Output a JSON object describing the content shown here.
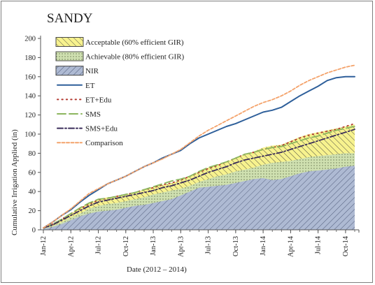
{
  "chart_data": {
    "type": "area",
    "title": "SANDY",
    "xlabel": "Date (2012 – 2014)",
    "ylabel": "Cumulative Irrigation Applied (in)",
    "ylim": [
      0,
      200
    ],
    "yticks": [
      0,
      20,
      40,
      60,
      80,
      100,
      120,
      140,
      160,
      180,
      200
    ],
    "x": [
      "2012-01",
      "2012-02",
      "2012-03",
      "2012-04",
      "2012-05",
      "2012-06",
      "2012-07",
      "2012-08",
      "2012-09",
      "2012-10",
      "2012-11",
      "2012-12",
      "2013-01",
      "2013-02",
      "2013-03",
      "2013-04",
      "2013-05",
      "2013-06",
      "2013-07",
      "2013-08",
      "2013-09",
      "2013-10",
      "2013-11",
      "2013-12",
      "2014-01",
      "2014-02",
      "2014-03",
      "2014-04",
      "2014-05",
      "2014-06",
      "2014-07",
      "2014-08",
      "2014-09",
      "2014-10",
      "2014-11"
    ],
    "xtick_labels": [
      "Jan-12",
      "Apr-12",
      "Jul-12",
      "Oct-12",
      "Jan-13",
      "Apr-13",
      "Jul-13",
      "Oct-13",
      "Jan-14",
      "Apr-14",
      "Jul-14",
      "Oct-14"
    ],
    "legend_position": "top-left",
    "grid": false,
    "series": [
      {
        "name": "Acceptable (60% efficient GIR)",
        "kind": "band",
        "color": "#f7f28e",
        "hatch": "diagonal-ne",
        "values": [
          2,
          6,
          11,
          17,
          23,
          28,
          32,
          34,
          35,
          37,
          39,
          42,
          45,
          47,
          49,
          52,
          56,
          61,
          65,
          68,
          71,
          75,
          79,
          82,
          86,
          88,
          89,
          93,
          97,
          100,
          102,
          104,
          106,
          108,
          110
        ]
      },
      {
        "name": "Achievable (80% efficient GIR)",
        "kind": "band",
        "color": "#cfe0b0",
        "hatch": "dots",
        "values": [
          1,
          4,
          8,
          13,
          17,
          22,
          25,
          27,
          28,
          30,
          32,
          34,
          37,
          39,
          41,
          43,
          46,
          50,
          53,
          56,
          58,
          61,
          63,
          65,
          68,
          70,
          71,
          72,
          74,
          76,
          77,
          78,
          79,
          80,
          80
        ]
      },
      {
        "name": "NIR",
        "kind": "band",
        "color": "#aebad3",
        "hatch": "diagonal-nw",
        "values": [
          1,
          3,
          6,
          10,
          14,
          17,
          19,
          20,
          21,
          23,
          25,
          26,
          28,
          30,
          32,
          36,
          40,
          44,
          45,
          46,
          47,
          49,
          51,
          53,
          54,
          52,
          53,
          56,
          59,
          61,
          62,
          63,
          64,
          66,
          67
        ]
      },
      {
        "name": "ET",
        "kind": "line",
        "color": "#2e5f9a",
        "dash": "solid",
        "values": [
          2,
          8,
          15,
          21,
          29,
          36,
          42,
          48,
          52,
          56,
          61,
          66,
          70,
          75,
          79,
          83,
          90,
          96,
          100,
          104,
          108,
          111,
          115,
          119,
          123,
          125,
          128,
          134,
          140,
          145,
          150,
          156,
          159,
          160,
          160
        ]
      },
      {
        "name": "ET+Edu",
        "kind": "line",
        "color": "#b2382f",
        "dash": "dot",
        "values": [
          2,
          6,
          11,
          17,
          22,
          27,
          31,
          33,
          35,
          37,
          39,
          42,
          44,
          47,
          49,
          52,
          56,
          60,
          64,
          67,
          71,
          75,
          79,
          81,
          84,
          86,
          88,
          92,
          96,
          99,
          101,
          103,
          105,
          108,
          111
        ]
      },
      {
        "name": "SMS",
        "kind": "line",
        "color": "#8cb65e",
        "dash": "long-dash",
        "values": [
          2,
          6,
          11,
          17,
          23,
          28,
          32,
          33,
          35,
          37,
          39,
          42,
          45,
          48,
          51,
          53,
          56,
          61,
          65,
          68,
          71,
          75,
          79,
          81,
          84,
          86,
          87,
          90,
          93,
          96,
          98,
          101,
          104,
          106,
          108
        ]
      },
      {
        "name": "SMS+Edu",
        "kind": "line",
        "color": "#3a2c5a",
        "dash": "dash-dot",
        "values": [
          2,
          5,
          10,
          15,
          20,
          25,
          29,
          31,
          33,
          35,
          37,
          39,
          41,
          44,
          46,
          49,
          52,
          56,
          60,
          63,
          66,
          70,
          73,
          75,
          77,
          79,
          81,
          84,
          87,
          90,
          93,
          96,
          99,
          102,
          105
        ]
      },
      {
        "name": "Comparison",
        "kind": "line",
        "color": "#f4a26a",
        "dash": "short-dash",
        "values": [
          2,
          8,
          15,
          22,
          30,
          38,
          43,
          48,
          52,
          56,
          61,
          66,
          70,
          74,
          79,
          84,
          91,
          98,
          104,
          109,
          114,
          119,
          124,
          129,
          133,
          136,
          140,
          145,
          151,
          156,
          160,
          164,
          167,
          170,
          172
        ]
      }
    ]
  }
}
